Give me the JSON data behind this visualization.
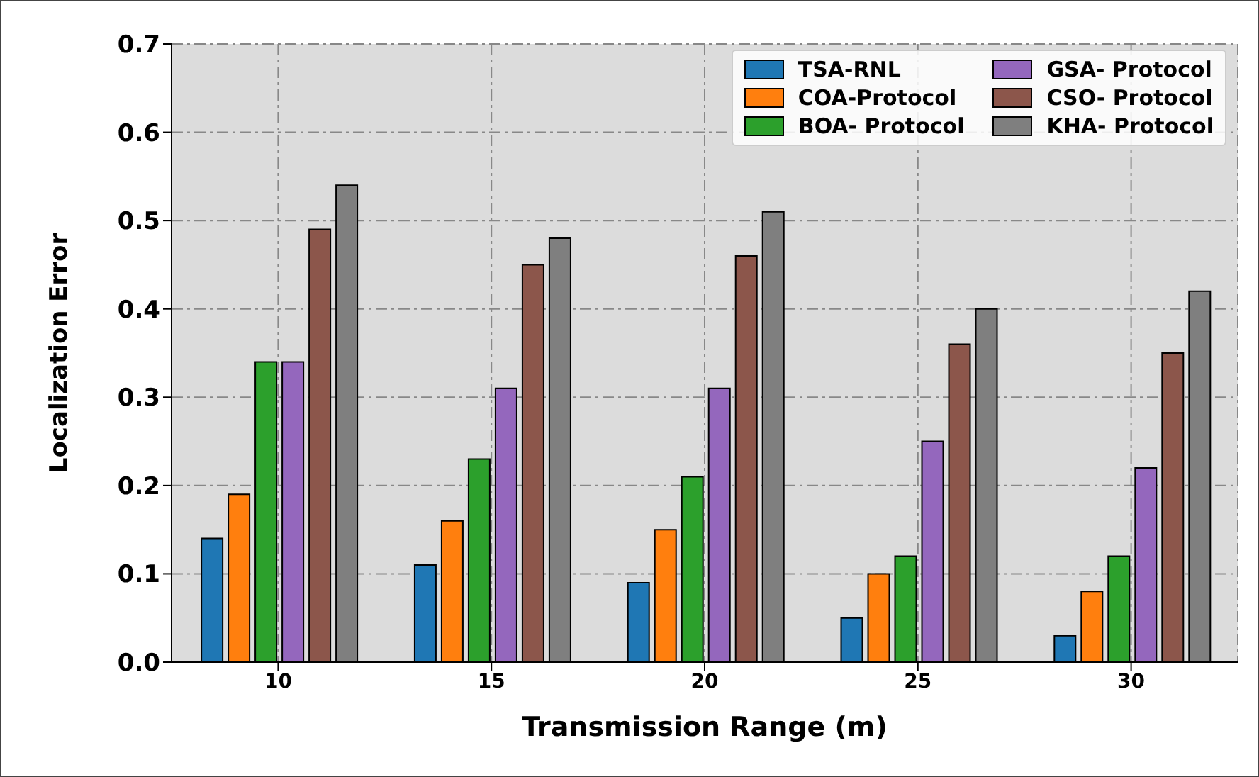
{
  "chart_data": {
    "type": "bar",
    "xlabel": "Transmission Range (m)",
    "ylabel": "Localization Error",
    "categories": [
      "10",
      "15",
      "20",
      "25",
      "30"
    ],
    "series": [
      {
        "name": "TSA-RNL",
        "color": "#1f77b4",
        "values": [
          0.14,
          0.11,
          0.09,
          0.05,
          0.03
        ]
      },
      {
        "name": "COA-Protocol",
        "color": "#ff7f0e",
        "values": [
          0.19,
          0.16,
          0.15,
          0.1,
          0.08
        ]
      },
      {
        "name": "BOA- Protocol",
        "color": "#2ca02c",
        "values": [
          0.34,
          0.23,
          0.21,
          0.12,
          0.12
        ]
      },
      {
        "name": "GSA- Protocol",
        "color": "#9467bd",
        "values": [
          0.34,
          0.31,
          0.31,
          0.25,
          0.22
        ]
      },
      {
        "name": "CSO- Protocol",
        "color": "#8c564b",
        "values": [
          0.49,
          0.45,
          0.46,
          0.36,
          0.35
        ]
      },
      {
        "name": "KHA- Protocol",
        "color": "#7f7f7f",
        "values": [
          0.54,
          0.48,
          0.51,
          0.4,
          0.42
        ]
      }
    ],
    "ylim": [
      0,
      0.7
    ],
    "yticks": [
      {
        "value": 0,
        "label": "0.0"
      },
      {
        "value": 0.1,
        "label": "0.1"
      },
      {
        "value": 0.2,
        "label": "0.2"
      },
      {
        "value": 0.3,
        "label": "0.3"
      },
      {
        "value": 0.4,
        "label": "0.4"
      },
      {
        "value": 0.5,
        "label": "0.5"
      },
      {
        "value": 0.6,
        "label": "0.6"
      },
      {
        "value": 0.7,
        "label": "0.7"
      }
    ],
    "grid": true,
    "legend": "top right"
  }
}
